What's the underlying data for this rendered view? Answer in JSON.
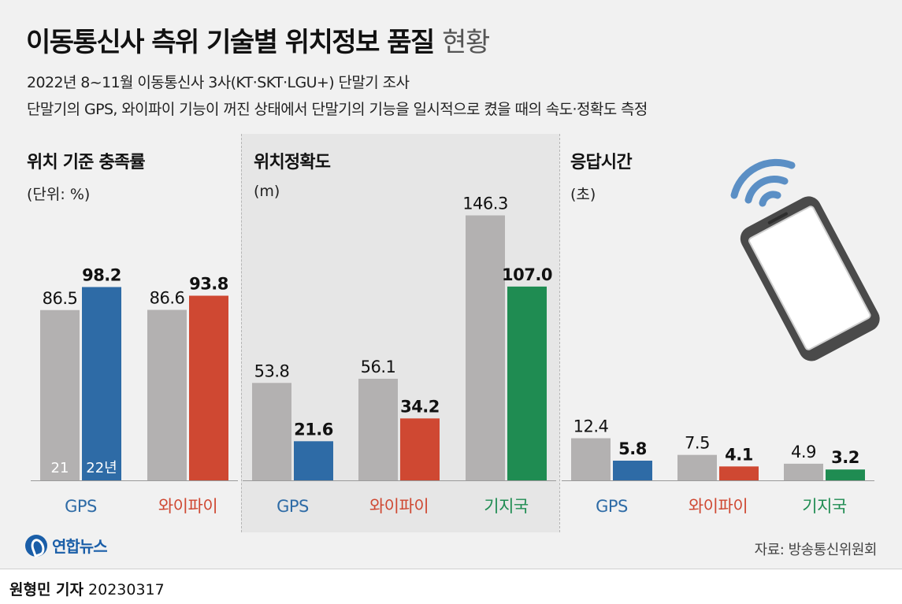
{
  "title": {
    "main": "이동통신사 측위 기술별 위치정보 품질",
    "light": "현황"
  },
  "subtitles": [
    "2022년 8~11월 이동통신사 3사(KT·SKT·LGU+) 단말기 조사",
    "단말기의 GPS, 와이파이 기능이 꺼진 상태에서 단말기의 기능을 일시적으로 켰을 때의 속도·정확도 측정"
  ],
  "colors": {
    "gray": "#b3b1b1",
    "blue": "#2e6ba6",
    "red": "#cf4832",
    "green": "#1f8c52",
    "band": "#e6e6e6"
  },
  "chart_data": [
    {
      "type": "bar",
      "title": "위치 기준 충족률",
      "unit": "(단위: %)",
      "categories": [
        "GPS",
        "와이파이"
      ],
      "series": [
        {
          "name": "21",
          "values": [
            86.5,
            86.6
          ]
        },
        {
          "name": "22년",
          "values": [
            98.2,
            93.8
          ]
        }
      ],
      "category_colors": [
        "blue",
        "red"
      ],
      "ylim": [
        0,
        100
      ]
    },
    {
      "type": "bar",
      "title": "위치정확도",
      "unit": "(m)",
      "categories": [
        "GPS",
        "와이파이",
        "기지국"
      ],
      "series": [
        {
          "name": "21",
          "values": [
            53.8,
            56.1,
            146.3
          ]
        },
        {
          "name": "22년",
          "values": [
            21.6,
            34.2,
            107.0
          ]
        }
      ],
      "category_colors": [
        "blue",
        "red",
        "green"
      ],
      "ylim": [
        0,
        150
      ]
    },
    {
      "type": "bar",
      "title": "응답시간",
      "unit": "(초)",
      "categories": [
        "GPS",
        "와이파이",
        "기지국"
      ],
      "series": [
        {
          "name": "21",
          "values": [
            12.4,
            7.5,
            4.9
          ]
        },
        {
          "name": "22년",
          "values": [
            5.8,
            4.1,
            3.2
          ]
        }
      ],
      "category_colors": [
        "blue",
        "red",
        "green"
      ],
      "ylim": [
        0,
        80
      ]
    }
  ],
  "footer": {
    "logo": "연합뉴스",
    "source": "자료: 방송통신위원회",
    "reporter": "원형민 기자",
    "date": "20230317"
  },
  "icons": [
    "wifi-icon",
    "smartphone-icon",
    "yonhap-logo-icon"
  ]
}
